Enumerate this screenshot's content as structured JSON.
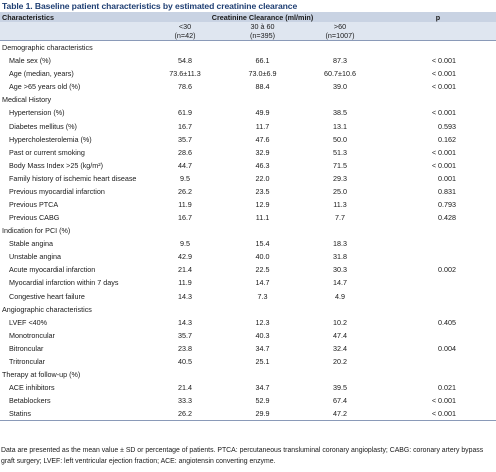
{
  "title": "Table 1. Baseline patient characteristics by estimated creatinine clearance",
  "header": {
    "characteristics": "Characteristics",
    "group_label": "Creatinine Clearance (ml/min)",
    "p": "p",
    "col1": "<30",
    "col2": "30 à 60",
    "col3": ">60",
    "col1_n": "(n=42)",
    "col2_n": "(n=395)",
    "col3_n": "(n=1007)"
  },
  "rows": [
    {
      "type": "section",
      "label": "Demographic characteristics"
    },
    {
      "type": "row",
      "label": "Male sex (%)",
      "v1": "54.8",
      "v2": "66.1",
      "v3": "87.3",
      "p": "< 0.001"
    },
    {
      "type": "row",
      "label": "Age (median, years)",
      "v1": "73.6±11.3",
      "v2": "73.0±6.9",
      "v3": "60.7±10.6",
      "p": "< 0.001"
    },
    {
      "type": "row",
      "label": "Age >65 years old (%)",
      "v1": "78.6",
      "v2": "88.4",
      "v3": "39.0",
      "p": "< 0.001"
    },
    {
      "type": "section",
      "label": "Medical History"
    },
    {
      "type": "row",
      "label": "Hypertension (%)",
      "v1": "61.9",
      "v2": "49.9",
      "v3": "38.5",
      "p": "< 0.001"
    },
    {
      "type": "row",
      "label": "Diabetes mellitus (%)",
      "v1": "16.7",
      "v2": "11.7",
      "v3": "13.1",
      "p": "0.593"
    },
    {
      "type": "row",
      "label": "Hypercholesterolemia (%)",
      "v1": "35.7",
      "v2": "47.6",
      "v3": "50.0",
      "p": "0.162"
    },
    {
      "type": "row",
      "label": "Past or current smoking",
      "v1": "28.6",
      "v2": "32.9",
      "v3": "51.3",
      "p": "< 0.001"
    },
    {
      "type": "row",
      "label": "Body Mass Index >25 (kg/m²)",
      "v1": "44.7",
      "v2": "46.3",
      "v3": "71.5",
      "p": "< 0.001"
    },
    {
      "type": "row",
      "label": "Family history of ischemic heart disease",
      "v1": "9.5",
      "v2": "22.0",
      "v3": "29.3",
      "p": "0.001"
    },
    {
      "type": "row",
      "label": "Previous myocardial infarction",
      "v1": "26.2",
      "v2": "23.5",
      "v3": "25.0",
      "p": "0.831"
    },
    {
      "type": "row",
      "label": "Previous PTCA",
      "v1": "11.9",
      "v2": "12.9",
      "v3": "11.3",
      "p": "0.793"
    },
    {
      "type": "row",
      "label": "Previous CABG",
      "v1": "16.7",
      "v2": "11.1",
      "v3": "7.7",
      "p": "0.428"
    },
    {
      "type": "section",
      "label": "Indication for PCI (%)"
    },
    {
      "type": "row",
      "label": "Stable angina",
      "v1": "9.5",
      "v2": "15.4",
      "v3": "18.3",
      "p": ""
    },
    {
      "type": "row",
      "label": "Unstable angina",
      "v1": "42.9",
      "v2": "40.0",
      "v3": "31.8",
      "p": ""
    },
    {
      "type": "row",
      "label": "Acute myocardial infarction",
      "v1": "21.4",
      "v2": "22.5",
      "v3": "30.3",
      "p": "0.002"
    },
    {
      "type": "row",
      "label": "Myocardial infarction within 7 days",
      "v1": "11.9",
      "v2": "14.7",
      "v3": "14.7",
      "p": ""
    },
    {
      "type": "row",
      "label": "Congestive heart failure",
      "v1": "14.3",
      "v2": "7.3",
      "v3": "4.9",
      "p": ""
    },
    {
      "type": "section",
      "label": "Angiographic characteristics"
    },
    {
      "type": "row",
      "label": "LVEF <40%",
      "v1": "14.3",
      "v2": "12.3",
      "v3": "10.2",
      "p": "0.405"
    },
    {
      "type": "row",
      "label": "Monotroncular",
      "v1": "35.7",
      "v2": "40.3",
      "v3": "47.4",
      "p": ""
    },
    {
      "type": "row",
      "label": "Bitroncular",
      "v1": "23.8",
      "v2": "34.7",
      "v3": "32.4",
      "p": "0.004"
    },
    {
      "type": "row",
      "label": "Tritroncular",
      "v1": "40.5",
      "v2": "25.1",
      "v3": "20.2",
      "p": ""
    },
    {
      "type": "section",
      "label": "Therapy at follow-up (%)"
    },
    {
      "type": "row",
      "label": "ACE inhibitors",
      "v1": "21.4",
      "v2": "34.7",
      "v3": "39.5",
      "p": "0.021"
    },
    {
      "type": "row",
      "label": "Betablockers",
      "v1": "33.3",
      "v2": "52.9",
      "v3": "67.4",
      "p": "< 0.001"
    },
    {
      "type": "row",
      "label": "Statins",
      "v1": "26.2",
      "v2": "29.9",
      "v3": "47.2",
      "p": "< 0.001"
    }
  ],
  "footnote": "Data are presented as the mean value ± SD or percentage of patients. PTCA: percutaneous transluminal coronary angioplasty; CABG: coronary artery bypass graft surgery; LVEF: left ventricular ejection fraction; ACE: angiotensin converting enzyme."
}
